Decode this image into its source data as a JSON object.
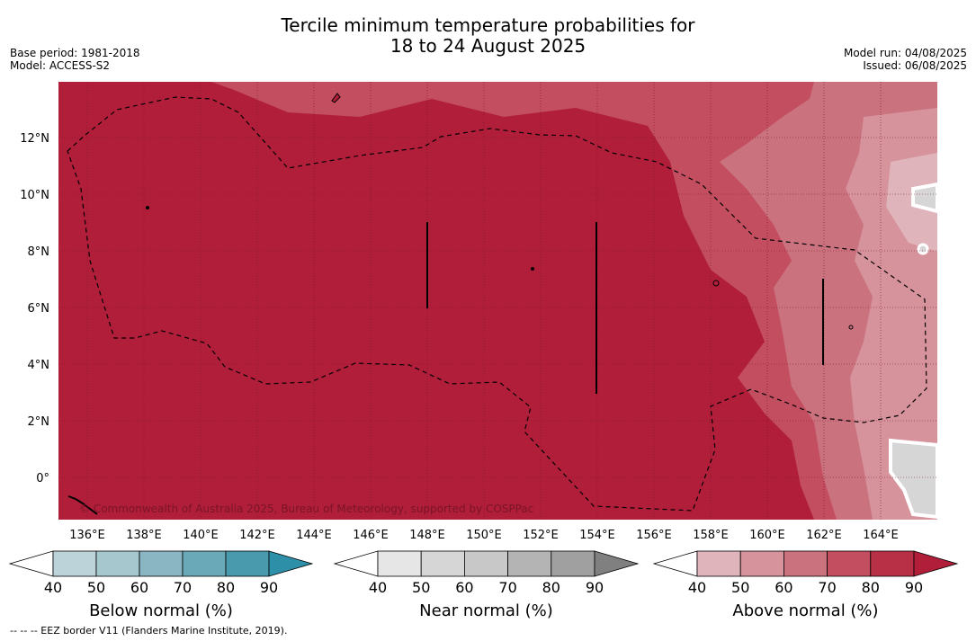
{
  "header": {
    "title_line1": "Tercile minimum temperature probabilities for",
    "title_line2": "18 to 24 August 2025",
    "base_period": "Base period: 1981-2018",
    "model": "Model: ACCESS-S2",
    "model_run": "Model run: 04/08/2025",
    "issued": "Issued: 06/08/2025"
  },
  "map": {
    "lat_labels": [
      "12°N",
      "10°N",
      "8°N",
      "6°N",
      "4°N",
      "2°N",
      "0°"
    ],
    "lon_labels": [
      "136°E",
      "138°E",
      "140°E",
      "142°E",
      "144°E",
      "146°E",
      "148°E",
      "150°E",
      "152°E",
      "154°E",
      "156°E",
      "158°E",
      "160°E",
      "162°E",
      "164°E"
    ],
    "lat_values": [
      12,
      10,
      8,
      6,
      4,
      2,
      0
    ],
    "lon_values": [
      136,
      138,
      140,
      142,
      144,
      146,
      148,
      150,
      152,
      154,
      156,
      158,
      160,
      162,
      164
    ],
    "lon_range": [
      135,
      166
    ],
    "lat_range": [
      -1.5,
      14
    ],
    "copyright": "© Commonwealth of Australia 2025, Bureau of Meteorology, supported by COSPPac",
    "base_color": "#b01e3a"
  },
  "colorbars": [
    {
      "title": "Below normal (%)",
      "ticks": [
        "40",
        "50",
        "60",
        "70",
        "80",
        "90"
      ],
      "colors": [
        "#ffffff",
        "#bcd3da",
        "#a7c7cf",
        "#8ab5c2",
        "#6aa9b8",
        "#4a9aae",
        "#2d8fa8"
      ]
    },
    {
      "title": "Near normal (%)",
      "ticks": [
        "40",
        "50",
        "60",
        "70",
        "80",
        "90"
      ],
      "colors": [
        "#ffffff",
        "#e6e6e6",
        "#d6d6d6",
        "#c8c8c8",
        "#b4b4b4",
        "#a0a0a0",
        "#808080"
      ]
    },
    {
      "title": "Above normal (%)",
      "ticks": [
        "40",
        "50",
        "60",
        "70",
        "80",
        "90"
      ],
      "colors": [
        "#ffffff",
        "#e0b4bb",
        "#d6939c",
        "#cb727f",
        "#c24e60",
        "#b83046",
        "#b01e3a"
      ]
    }
  ],
  "footnote": "--  --  -- EEZ border V11 (Flanders Marine Institute, 2019)."
}
